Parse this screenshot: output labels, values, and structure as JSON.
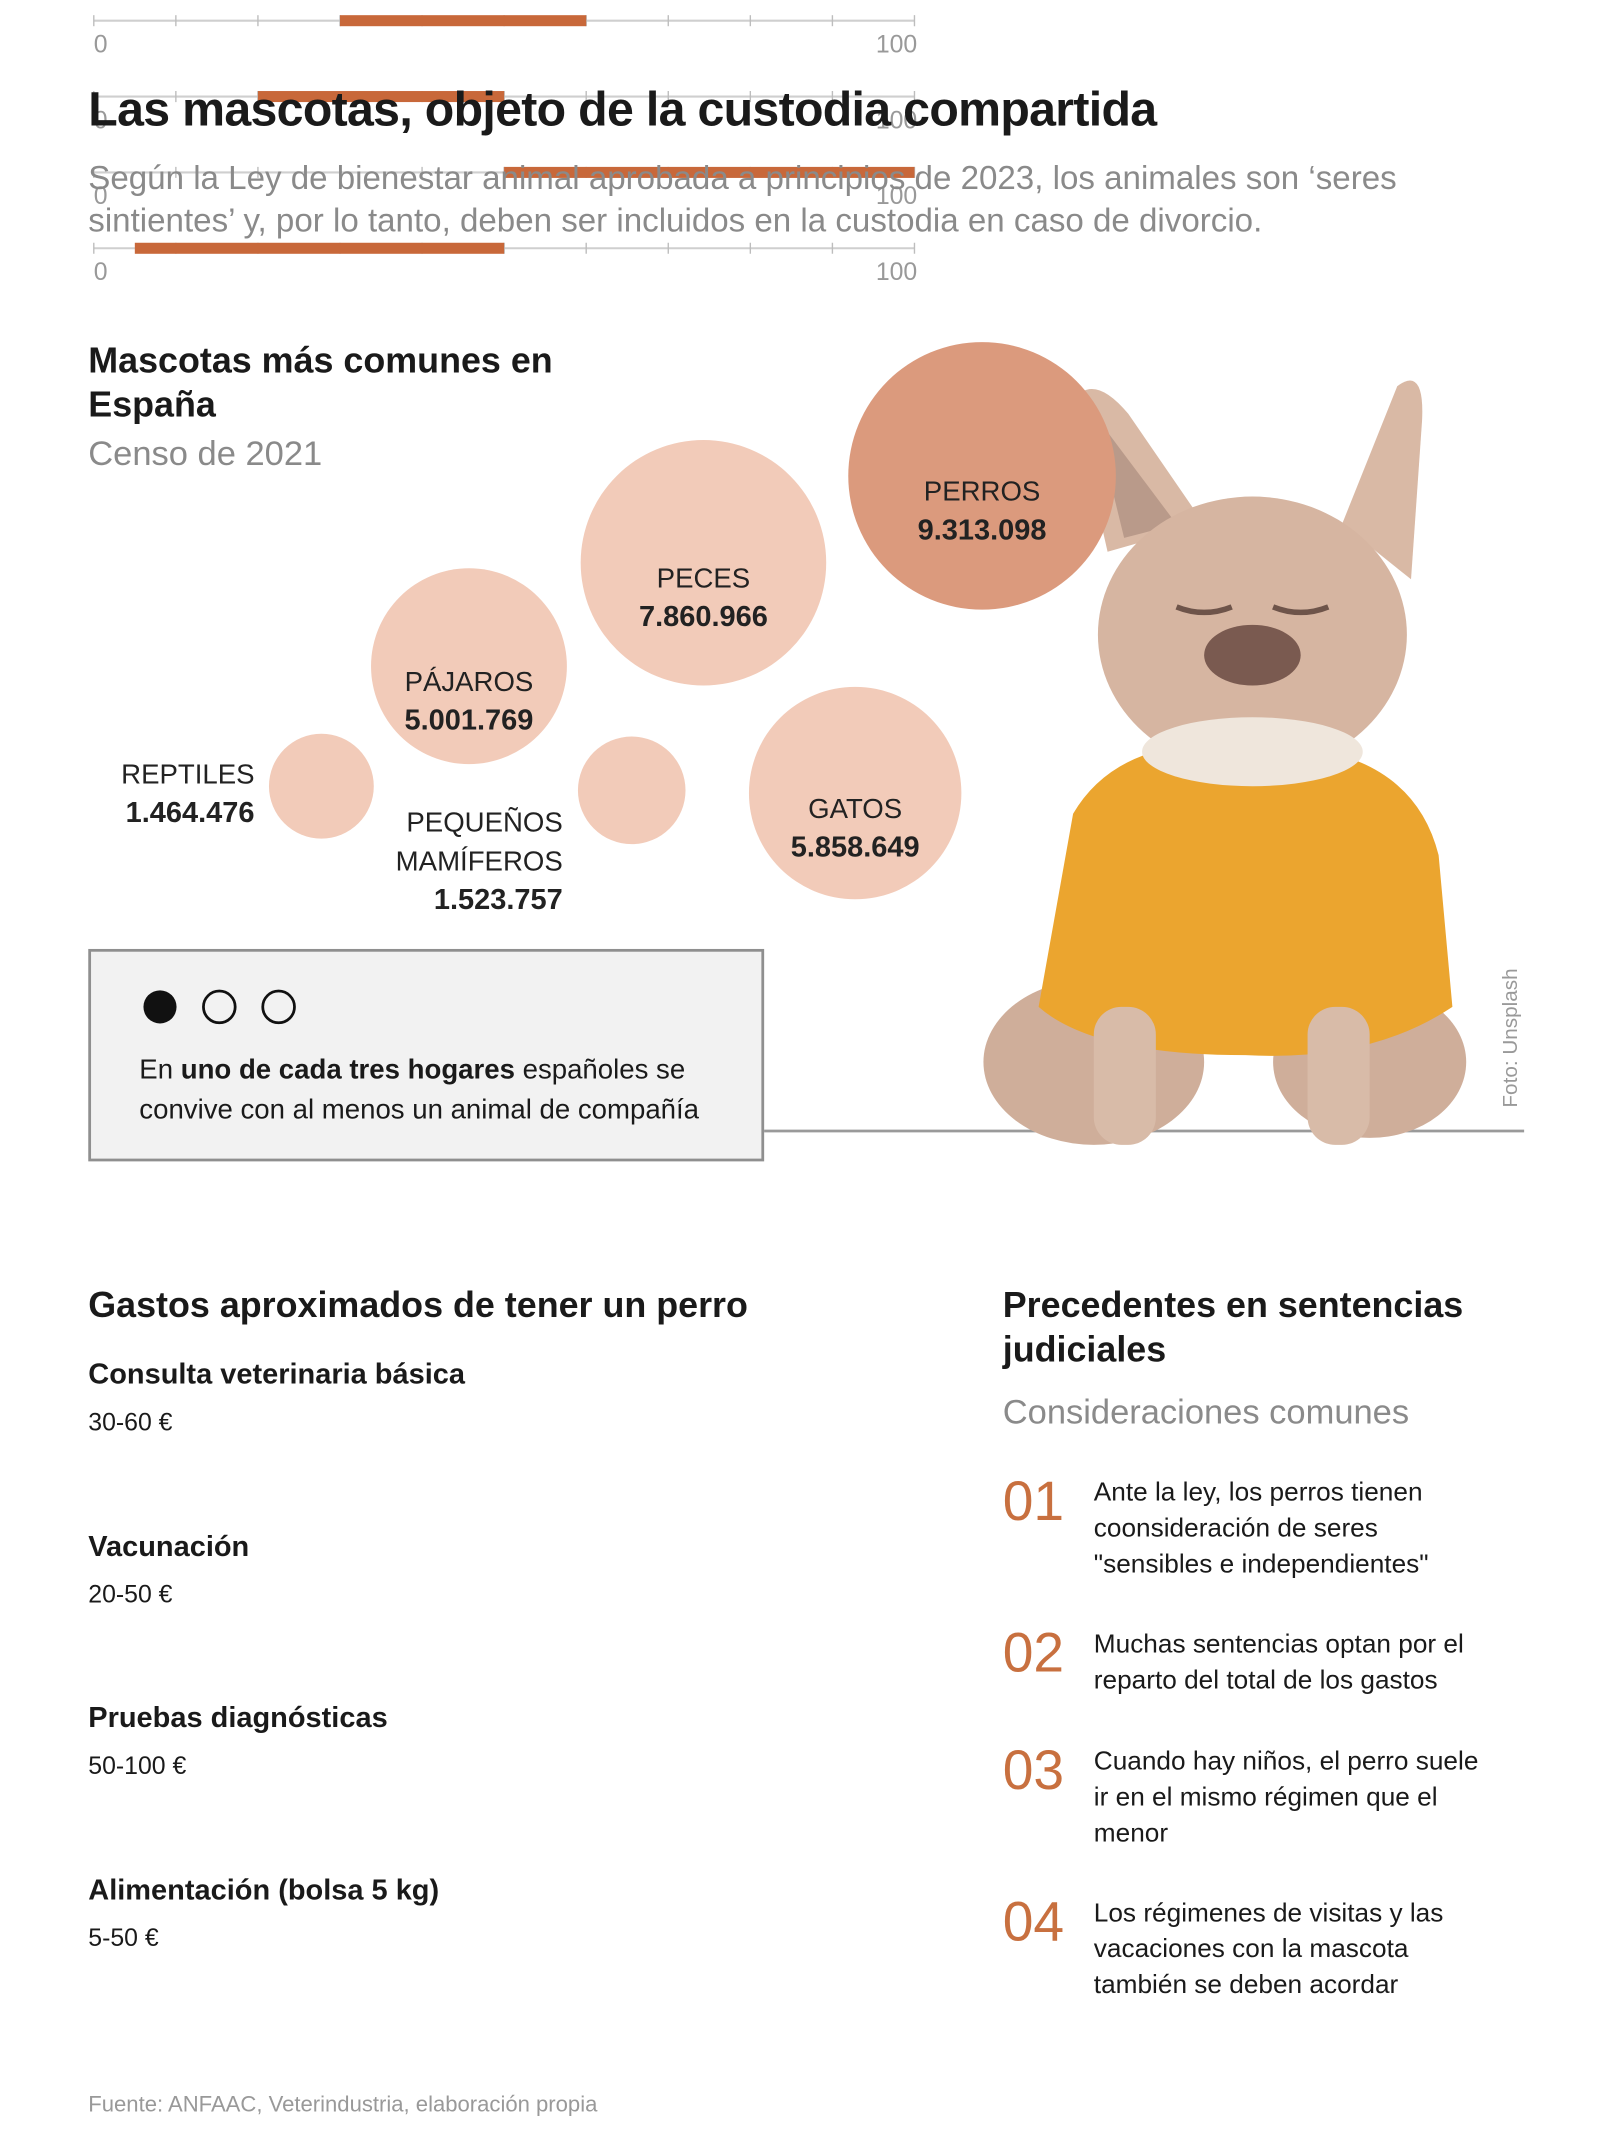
{
  "header": {
    "title": "Las mascotas, objeto de la custodia compartida",
    "subtitle": "Según la Ley de bienestar animal aprobada a principios de 2023, los animales son ‘seres sintientes’ y, por lo tanto, deben ser incluidos en la custodia en caso de divorcio."
  },
  "chart_data": [
    {
      "type": "bubble",
      "title": "Mascotas más comunes en España",
      "subtitle": "Censo de 2021",
      "categories": [
        "PERROS",
        "PECES",
        "GATOS",
        "PÁJAROS",
        "REPTILES",
        "PEQUEÑOS MAMÍFEROS"
      ],
      "values": [
        9313098,
        7860966,
        5858649,
        5001769,
        1464476,
        1523757
      ],
      "value_labels": [
        "9.313.098",
        "7.860.966",
        "5.858.649",
        "5.001.769",
        "1.464.476",
        "1.523.757"
      ],
      "colors": [
        "#db9a7d",
        "#f2cbb9",
        "#f2cbb9",
        "#f2cbb9",
        "#f2cbb9",
        "#f2cbb9"
      ]
    },
    {
      "type": "range",
      "title": "Gastos aproximados de tener un perro",
      "xlim": [
        0,
        100
      ],
      "xticks": [
        0,
        100
      ],
      "minor_xticks": [
        10,
        20,
        30,
        40,
        50,
        60,
        70,
        80,
        90
      ],
      "color": "#c8683a",
      "series": [
        {
          "name": "Consulta veterinaria básica",
          "values": [
            30,
            60
          ],
          "value_label": "30-60 €"
        },
        {
          "name": "Vacunación",
          "values": [
            20,
            50
          ],
          "value_label": "20-50 €"
        },
        {
          "name": "Pruebas diagnósticas",
          "values": [
            50,
            100
          ],
          "value_label": "50-100 €"
        },
        {
          "name": "Alimentación (bolsa 5 kg)",
          "values": [
            5,
            50
          ],
          "value_label": "5-50 €"
        }
      ]
    }
  ],
  "note": {
    "before": "En ",
    "bold": "uno de cada tres hogares",
    "after": " españoles se convive con al menos un animal de compañía"
  },
  "photo_credit": "Foto: Unsplash",
  "precedents": {
    "title": "Precedentes en sentencias judiciales",
    "subtitle": "Consideraciones comunes",
    "items": [
      {
        "number": "01",
        "text": "Ante la ley, los perros tienen coonsideración de seres \"sensibles e independientes\""
      },
      {
        "number": "02",
        "text": "Muchas sentencias optan por el reparto del total de los gastos"
      },
      {
        "number": "03",
        "text": "Cuando hay niños, el perro suele ir en el mismo régimen que el menor"
      },
      {
        "number": "04",
        "text": "Los régimenes de visitas y las vacaciones con la mascota también se deben acordar"
      }
    ]
  },
  "source": "Fuente: ANFAAC, Veterindustria, elaboración propia"
}
